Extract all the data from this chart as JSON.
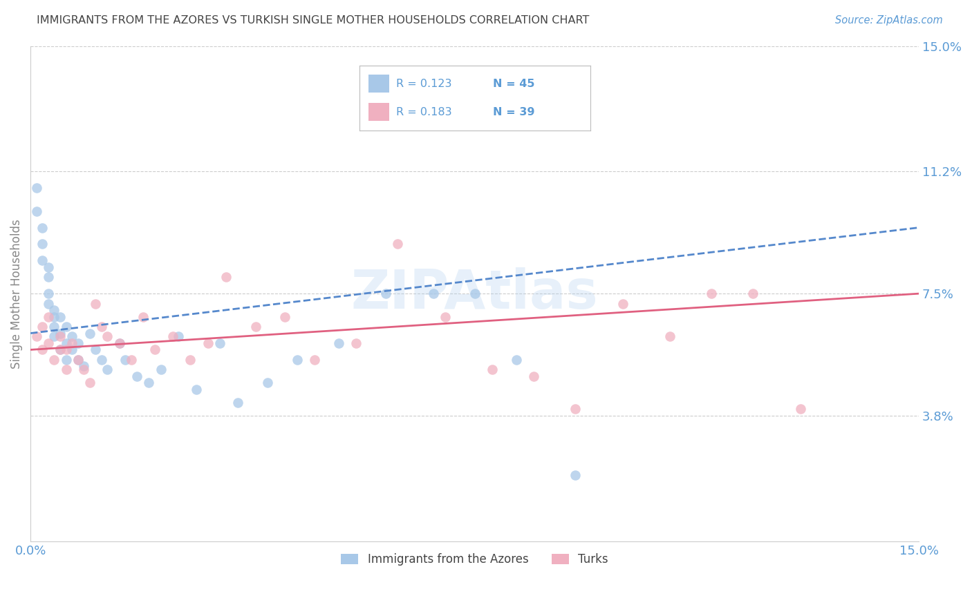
{
  "title": "IMMIGRANTS FROM THE AZORES VS TURKISH SINGLE MOTHER HOUSEHOLDS CORRELATION CHART",
  "source": "Source: ZipAtlas.com",
  "ylabel": "Single Mother Households",
  "xlim": [
    0.0,
    0.15
  ],
  "ylim": [
    0.0,
    0.15
  ],
  "ytick_labels": [
    "15.0%",
    "11.2%",
    "7.5%",
    "3.8%"
  ],
  "ytick_positions": [
    0.15,
    0.112,
    0.075,
    0.038
  ],
  "xtick_labels": [
    "0.0%",
    "15.0%"
  ],
  "xtick_positions": [
    0.0,
    0.15
  ],
  "legend_r1": "0.123",
  "legend_n1": "45",
  "legend_r2": "0.183",
  "legend_n2": "39",
  "legend_label1": "Immigrants from the Azores",
  "legend_label2": "Turks",
  "color_blue": "#a8c8e8",
  "color_pink": "#f0b0c0",
  "color_line_blue": "#5588cc",
  "color_line_pink": "#e06080",
  "color_text_blue": "#5b9bd5",
  "watermark": "ZIPAtlas",
  "azores_x": [
    0.001,
    0.001,
    0.002,
    0.002,
    0.002,
    0.003,
    0.003,
    0.003,
    0.003,
    0.004,
    0.004,
    0.004,
    0.004,
    0.005,
    0.005,
    0.005,
    0.006,
    0.006,
    0.006,
    0.007,
    0.007,
    0.008,
    0.008,
    0.009,
    0.01,
    0.011,
    0.012,
    0.013,
    0.015,
    0.016,
    0.018,
    0.02,
    0.022,
    0.025,
    0.028,
    0.032,
    0.035,
    0.04,
    0.045,
    0.052,
    0.06,
    0.068,
    0.075,
    0.082,
    0.092
  ],
  "azores_y": [
    0.107,
    0.1,
    0.095,
    0.09,
    0.085,
    0.083,
    0.08,
    0.075,
    0.072,
    0.07,
    0.068,
    0.065,
    0.062,
    0.068,
    0.063,
    0.058,
    0.06,
    0.065,
    0.055,
    0.062,
    0.058,
    0.055,
    0.06,
    0.053,
    0.063,
    0.058,
    0.055,
    0.052,
    0.06,
    0.055,
    0.05,
    0.048,
    0.052,
    0.062,
    0.046,
    0.06,
    0.042,
    0.048,
    0.055,
    0.06,
    0.075,
    0.075,
    0.075,
    0.055,
    0.02
  ],
  "turks_x": [
    0.001,
    0.002,
    0.002,
    0.003,
    0.003,
    0.004,
    0.005,
    0.005,
    0.006,
    0.006,
    0.007,
    0.008,
    0.009,
    0.01,
    0.011,
    0.012,
    0.013,
    0.015,
    0.017,
    0.019,
    0.021,
    0.024,
    0.027,
    0.03,
    0.033,
    0.038,
    0.043,
    0.048,
    0.055,
    0.062,
    0.07,
    0.078,
    0.085,
    0.092,
    0.1,
    0.108,
    0.115,
    0.122,
    0.13
  ],
  "turks_y": [
    0.062,
    0.058,
    0.065,
    0.06,
    0.068,
    0.055,
    0.058,
    0.062,
    0.058,
    0.052,
    0.06,
    0.055,
    0.052,
    0.048,
    0.072,
    0.065,
    0.062,
    0.06,
    0.055,
    0.068,
    0.058,
    0.062,
    0.055,
    0.06,
    0.08,
    0.065,
    0.068,
    0.055,
    0.06,
    0.09,
    0.068,
    0.052,
    0.05,
    0.04,
    0.072,
    0.062,
    0.075,
    0.075,
    0.04
  ]
}
